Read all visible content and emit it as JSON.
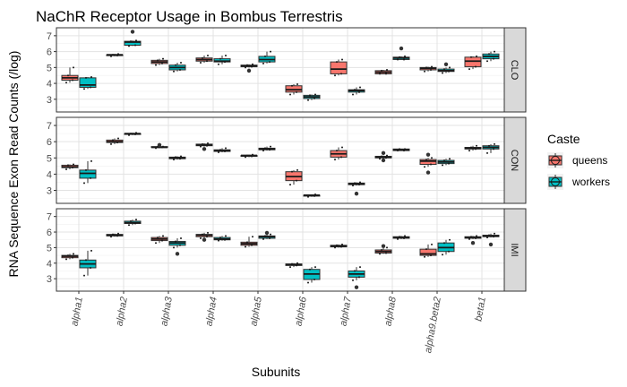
{
  "chart_data": {
    "type": "boxplot",
    "title": "NaChR Receptor Usage in Bombus Terrestris",
    "xlabel": "Subunits",
    "ylabel": "RNA Sequence Exon Read Counts (/log)",
    "categories": [
      "alpha1",
      "alpha2",
      "alpha3",
      "alpha4",
      "alpha5",
      "alpha6",
      "alpha7",
      "alpha8",
      "alpha9.beta2",
      "beta1"
    ],
    "y_ticks": [
      3,
      4,
      5,
      6,
      7
    ],
    "ylim": [
      2.2,
      7.5
    ],
    "grid": true,
    "legend": {
      "title": "Caste",
      "position": "right",
      "entries": [
        "queens",
        "workers"
      ]
    },
    "colors": {
      "queens": "#F8766D",
      "workers": "#00BFC4"
    },
    "panels": [
      {
        "label": "CLO",
        "series": [
          {
            "name": "queens",
            "boxes": [
              [
                4.05,
                4.2,
                4.35,
                4.5,
                5.0
              ],
              [
                5.7,
                5.75,
                5.8,
                5.8,
                5.85
              ],
              [
                5.15,
                5.25,
                5.35,
                5.45,
                5.55
              ],
              [
                5.3,
                5.4,
                5.5,
                5.6,
                5.75
              ],
              [
                5.0,
                5.05,
                5.1,
                5.15,
                5.2
              ],
              [
                3.3,
                3.45,
                3.6,
                3.85,
                3.95
              ],
              [
                4.5,
                4.6,
                4.9,
                5.35,
                5.5
              ],
              [
                4.6,
                4.6,
                4.7,
                4.8,
                4.85
              ],
              [
                4.75,
                4.85,
                4.95,
                5.0,
                5.05
              ],
              [
                4.9,
                5.05,
                5.4,
                5.65,
                5.7
              ]
            ],
            "outliers": [
              [],
              [],
              [],
              [],
              [
                4.8
              ],
              [],
              [],
              [],
              [],
              []
            ]
          },
          {
            "name": "workers",
            "boxes": [
              [
                3.65,
                3.75,
                3.9,
                4.35,
                4.4
              ],
              [
                6.35,
                6.4,
                6.6,
                6.65,
                6.7
              ],
              [
                4.75,
                4.85,
                5.0,
                5.15,
                5.3
              ],
              [
                5.2,
                5.35,
                5.4,
                5.55,
                5.75
              ],
              [
                5.25,
                5.35,
                5.5,
                5.7,
                6.0
              ],
              [
                2.95,
                3.05,
                3.15,
                3.25,
                3.3
              ],
              [
                3.3,
                3.45,
                3.55,
                3.6,
                3.75
              ],
              [
                5.5,
                5.5,
                5.6,
                5.65,
                5.7
              ],
              [
                4.65,
                4.75,
                4.8,
                4.9,
                5.0
              ],
              [
                5.4,
                5.55,
                5.7,
                5.85,
                6.0
              ]
            ],
            "outliers": [
              [],
              [
                7.25
              ],
              [],
              [],
              [],
              [],
              [],
              [
                6.2
              ],
              [
                5.2
              ],
              []
            ]
          }
        ]
      },
      {
        "label": "CON",
        "series": [
          {
            "name": "queens",
            "boxes": [
              [
                4.3,
                4.4,
                4.45,
                4.55,
                4.6
              ],
              [
                5.85,
                5.95,
                6.0,
                6.1,
                6.2
              ],
              [
                5.6,
                5.65,
                5.65,
                5.7,
                5.7
              ],
              [
                5.7,
                5.75,
                5.8,
                5.85,
                5.9
              ],
              [
                5.05,
                5.1,
                5.15,
                5.15,
                5.2
              ],
              [
                3.35,
                3.6,
                3.85,
                4.15,
                4.25
              ],
              [
                4.9,
                5.05,
                5.25,
                5.45,
                5.65
              ],
              [
                4.95,
                5.0,
                5.05,
                5.1,
                5.15
              ],
              [
                4.45,
                4.6,
                4.8,
                4.9,
                5.0
              ],
              [
                5.45,
                5.55,
                5.6,
                5.65,
                5.75
              ]
            ],
            "outliers": [
              [],
              [],
              [
                5.8
              ],
              [
                5.55
              ],
              [],
              [],
              [],
              [
                5.3,
                4.85
              ],
              [
                4.1,
                5.2
              ],
              []
            ]
          },
          {
            "name": "workers",
            "boxes": [
              [
                3.45,
                3.75,
                4.05,
                4.25,
                4.8
              ],
              [
                6.4,
                6.45,
                6.5,
                6.5,
                6.55
              ],
              [
                4.9,
                4.95,
                5.0,
                5.05,
                5.1
              ],
              [
                5.35,
                5.4,
                5.45,
                5.5,
                5.6
              ],
              [
                5.45,
                5.5,
                5.55,
                5.6,
                5.7
              ],
              [
                2.6,
                2.65,
                2.7,
                2.7,
                2.75
              ],
              [
                3.3,
                3.35,
                3.4,
                3.45,
                3.5
              ],
              [
                5.45,
                5.45,
                5.5,
                5.55,
                5.55
              ],
              [
                4.55,
                4.65,
                4.75,
                4.85,
                4.95
              ],
              [
                5.3,
                5.55,
                5.65,
                5.75,
                5.85
              ]
            ],
            "outliers": [
              [],
              [],
              [],
              [],
              [],
              [],
              [
                2.8
              ],
              [],
              [],
              []
            ]
          }
        ]
      },
      {
        "label": "IMI",
        "series": [
          {
            "name": "queens",
            "boxes": [
              [
                4.25,
                4.35,
                4.45,
                4.5,
                4.6
              ],
              [
                5.7,
                5.75,
                5.8,
                5.85,
                5.9
              ],
              [
                5.3,
                5.45,
                5.55,
                5.65,
                5.75
              ],
              [
                5.6,
                5.7,
                5.8,
                5.85,
                5.95
              ],
              [
                5.05,
                5.15,
                5.25,
                5.35,
                5.7
              ],
              [
                3.75,
                3.85,
                3.9,
                3.95,
                4.0
              ],
              [
                5.0,
                5.05,
                5.1,
                5.15,
                5.2
              ],
              [
                4.6,
                4.65,
                4.75,
                4.85,
                5.0
              ],
              [
                4.4,
                4.5,
                4.6,
                4.9,
                5.2
              ],
              [
                5.55,
                5.6,
                5.65,
                5.7,
                5.75
              ]
            ],
            "outliers": [
              [],
              [],
              [],
              [
                5.5
              ],
              [],
              [],
              [],
              [
                5.1
              ],
              [],
              [
                5.3
              ]
            ]
          },
          {
            "name": "workers",
            "boxes": [
              [
                3.2,
                3.7,
                3.95,
                4.2,
                4.8
              ],
              [
                6.45,
                6.55,
                6.6,
                6.7,
                6.8
              ],
              [
                5.0,
                5.15,
                5.3,
                5.4,
                5.6
              ],
              [
                5.45,
                5.5,
                5.55,
                5.65,
                5.75
              ],
              [
                5.55,
                5.6,
                5.7,
                5.75,
                5.85
              ],
              [
                2.75,
                2.95,
                3.3,
                3.6,
                3.75
              ],
              [
                2.9,
                3.1,
                3.3,
                3.5,
                3.75
              ],
              [
                5.55,
                5.6,
                5.65,
                5.7,
                5.75
              ],
              [
                4.55,
                4.75,
                5.0,
                5.3,
                5.5
              ],
              [
                5.65,
                5.7,
                5.75,
                5.8,
                5.9
              ]
            ],
            "outliers": [
              [],
              [],
              [
                4.6
              ],
              [],
              [
                5.95
              ],
              [],
              [
                2.45
              ],
              [],
              [],
              [
                5.2
              ]
            ]
          }
        ]
      }
    ]
  }
}
